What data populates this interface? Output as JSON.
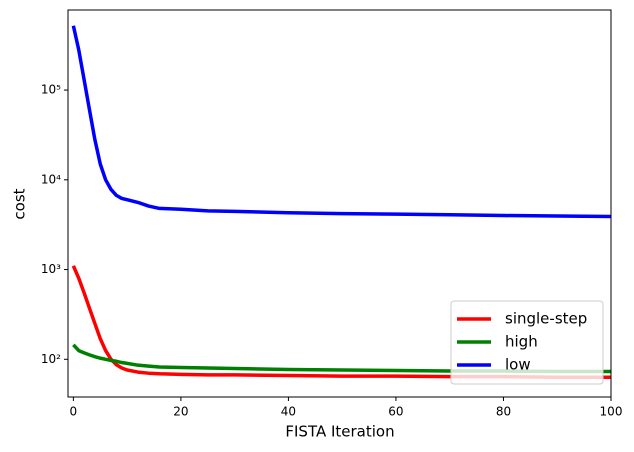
{
  "chart_data": {
    "type": "line",
    "x_label": "FISTA Iteration",
    "y_label": "cost",
    "x": [
      0,
      1,
      2,
      3,
      4,
      5,
      6,
      7,
      8,
      9,
      10,
      12,
      14,
      16,
      20,
      25,
      30,
      40,
      50,
      60,
      70,
      80,
      90,
      100
    ],
    "series": [
      {
        "name": "single-step",
        "color": "#ff0000",
        "values": [
          1100,
          800,
          550,
          370,
          250,
          170,
          125,
          100,
          87,
          80,
          76,
          72,
          70,
          69,
          68,
          67,
          67,
          66,
          65,
          65,
          64,
          64,
          63,
          63
        ]
      },
      {
        "name": "high",
        "color": "#008000",
        "values": [
          145,
          125,
          118,
          112,
          107,
          103,
          100,
          97,
          95,
          92,
          90,
          86,
          84,
          82,
          81,
          80,
          79,
          77,
          76,
          75,
          74,
          74,
          73,
          73
        ]
      },
      {
        "name": "low",
        "color": "#0000ff",
        "values": [
          520000,
          280000,
          130000,
          60000,
          28000,
          15000,
          10000,
          7800,
          6700,
          6200,
          6000,
          5600,
          5100,
          4800,
          4700,
          4500,
          4450,
          4300,
          4200,
          4150,
          4080,
          4000,
          3950,
          3900
        ]
      }
    ],
    "xlim": [
      -1,
      100
    ],
    "xticks": [
      0,
      20,
      40,
      60,
      80,
      100
    ],
    "ylim": [
      38,
      780000
    ],
    "log_y": true,
    "yticks": [
      {
        "value": 100,
        "label": "10²"
      },
      {
        "value": 1000,
        "label": "10³"
      },
      {
        "value": 10000,
        "label": "10⁴"
      },
      {
        "value": 100000,
        "label": "10⁵"
      }
    ],
    "legend": "lower right"
  }
}
